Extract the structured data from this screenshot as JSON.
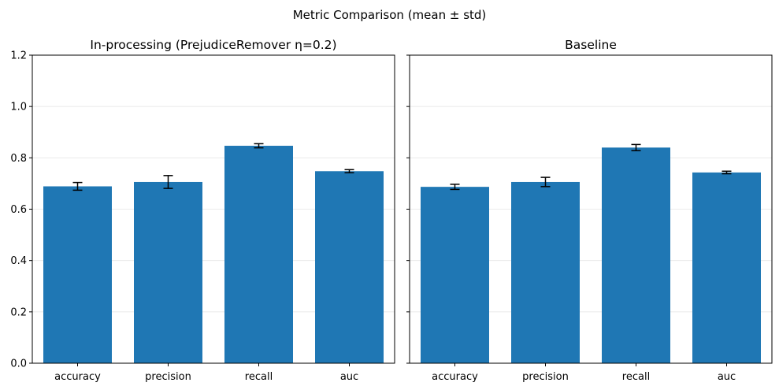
{
  "figure": {
    "suptitle": "Metric Comparison (mean ± std)"
  },
  "chart_data": [
    {
      "type": "bar",
      "title": "In-processing (PrejudiceRemover η=0.2)",
      "xlabel": "",
      "ylabel": "",
      "categories": [
        "accuracy",
        "precision",
        "recall",
        "auc"
      ],
      "values": [
        0.689,
        0.706,
        0.847,
        0.748
      ],
      "errors": [
        0.015,
        0.025,
        0.008,
        0.006
      ],
      "ylim": [
        0,
        1.2
      ],
      "yticks": [
        "0.0",
        "0.2",
        "0.4",
        "0.6",
        "0.8",
        "1.0",
        "1.2"
      ],
      "grid": "y",
      "color": "#1f77b4"
    },
    {
      "type": "bar",
      "title": "Baseline",
      "xlabel": "",
      "ylabel": "",
      "categories": [
        "accuracy",
        "precision",
        "recall",
        "auc"
      ],
      "values": [
        0.687,
        0.706,
        0.84,
        0.743
      ],
      "errors": [
        0.01,
        0.018,
        0.012,
        0.005
      ],
      "ylim": [
        0,
        1.2
      ],
      "yticks": [],
      "grid": "y",
      "color": "#1f77b4"
    }
  ]
}
